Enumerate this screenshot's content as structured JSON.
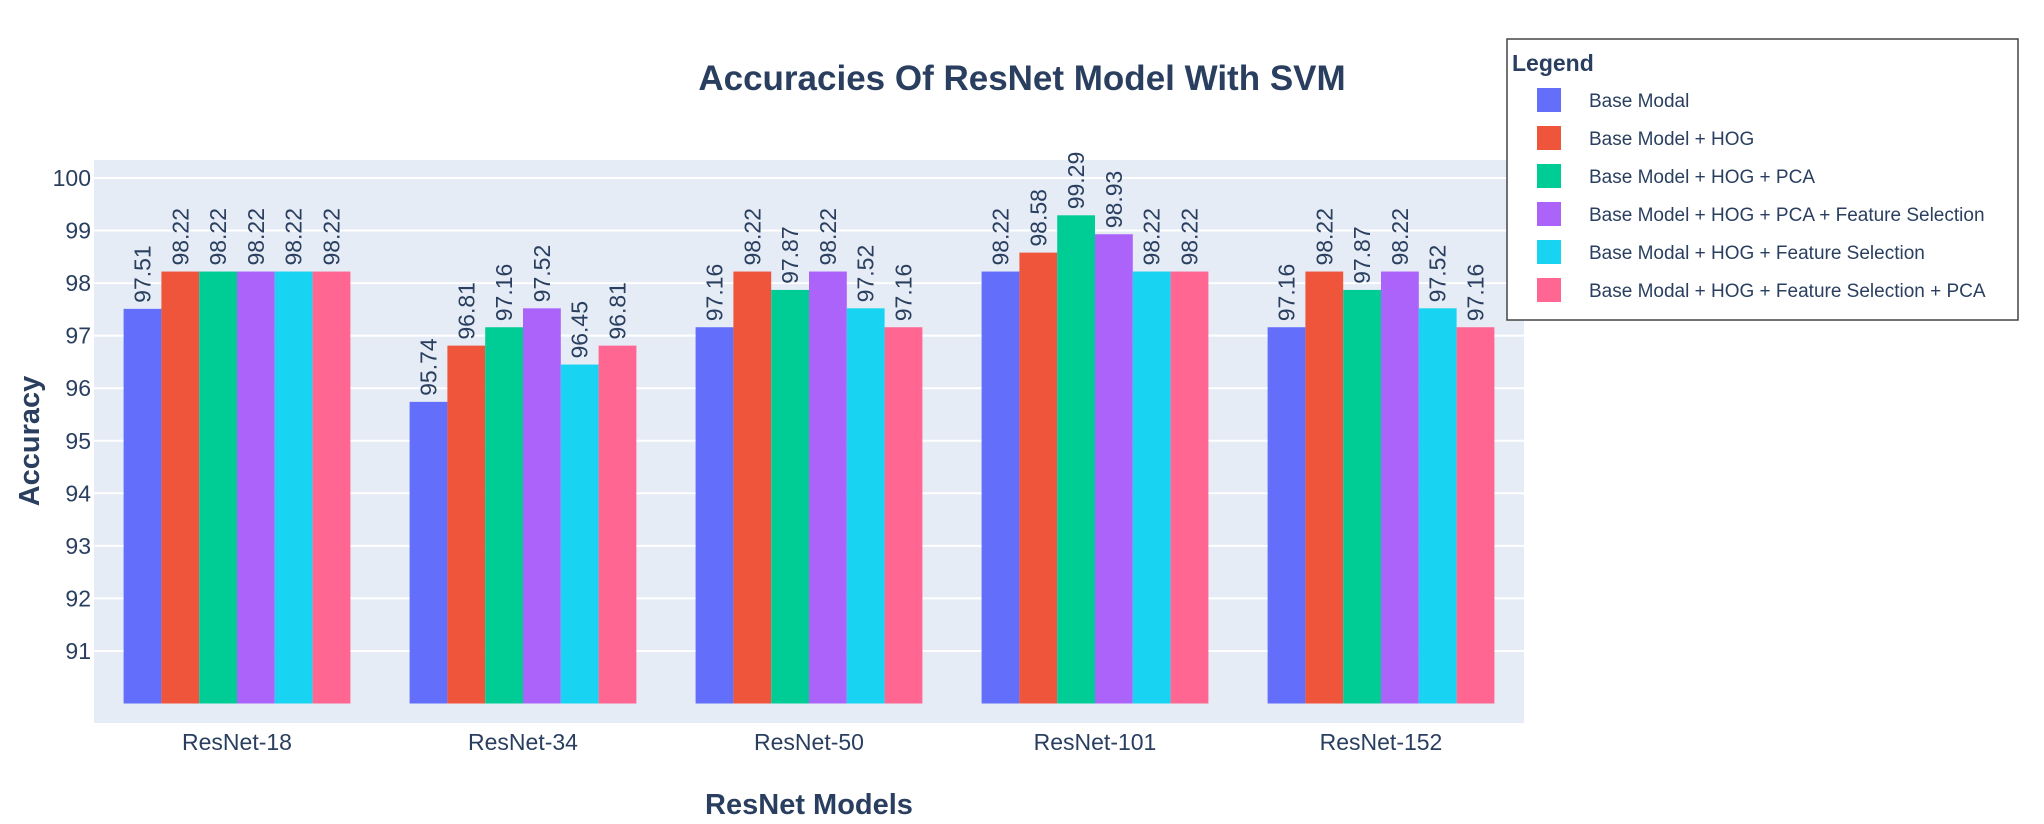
{
  "chart_data": {
    "type": "bar",
    "title": "Accuracies Of ResNet Model With SVM",
    "xlabel": "ResNet Models",
    "ylabel": "Accuracy",
    "categories": [
      "ResNet-18",
      "ResNet-34",
      "ResNet-50",
      "ResNet-101",
      "ResNet-152"
    ],
    "ylim": [
      90,
      100.4
    ],
    "yticks": [
      91,
      92,
      93,
      94,
      95,
      96,
      97,
      98,
      99,
      100
    ],
    "grid": true,
    "legend": {
      "title": "Legend",
      "placement": "top-right"
    },
    "series": [
      {
        "name": "Base Modal",
        "color": "#636efa",
        "values": [
          97.51,
          95.74,
          97.16,
          98.22,
          97.16
        ]
      },
      {
        "name": "Base Model + HOG",
        "color": "#ef553b",
        "values": [
          98.22,
          96.81,
          98.22,
          98.58,
          98.22
        ]
      },
      {
        "name": "Base Model + HOG + PCA",
        "color": "#00cc96",
        "values": [
          98.22,
          97.16,
          97.87,
          99.29,
          97.87
        ]
      },
      {
        "name": "Base Model + HOG + PCA + Feature Selection",
        "color": "#ab63fa",
        "values": [
          98.22,
          97.52,
          98.22,
          98.93,
          98.22
        ]
      },
      {
        "name": "Base Modal + HOG + Feature  Selection",
        "color": "#19d3f3",
        "values": [
          98.22,
          96.45,
          97.52,
          98.22,
          97.52
        ]
      },
      {
        "name": "Base Modal + HOG + Feature Selection + PCA",
        "color": "#ff6692",
        "values": [
          98.22,
          96.81,
          97.16,
          98.22,
          97.16
        ]
      }
    ],
    "colors": {
      "plot_background": "#e5ecf6",
      "gridline": "#ffffff",
      "text": "#2a3f5f",
      "legend_border": "#444444"
    }
  }
}
